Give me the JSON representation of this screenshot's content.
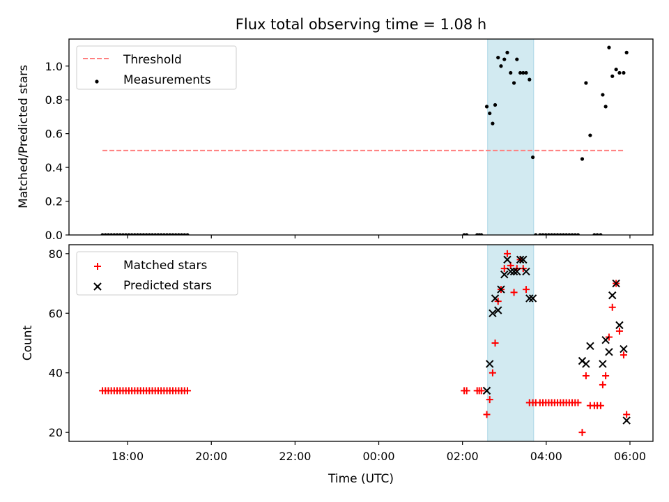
{
  "chart_data": [
    {
      "type": "scatter",
      "title": "Flux total observing time = 1.08 h",
      "ylabel": "Matched/Predicted stars",
      "xlabel": "",
      "ylim": [
        0,
        1.16
      ],
      "xlim": [
        16.6,
        30.55
      ],
      "x_ticks": [
        {
          "value": 18,
          "label": "18:00"
        },
        {
          "value": 20,
          "label": "20:00"
        },
        {
          "value": 22,
          "label": "22:00"
        },
        {
          "value": 24,
          "label": "00:00"
        },
        {
          "value": 26,
          "label": "02:00"
        },
        {
          "value": 28,
          "label": "04:00"
        },
        {
          "value": 30,
          "label": "06:00"
        }
      ],
      "y_ticks": [
        "0.0",
        "0.2",
        "0.4",
        "0.6",
        "0.8",
        "1.0"
      ],
      "y_tick_values": [
        0,
        0.2,
        0.4,
        0.6,
        0.8,
        1.0
      ],
      "legend": {
        "position": "top-left",
        "entries": [
          "Threshold",
          "Measurements"
        ]
      },
      "highlight_span": {
        "x": [
          26.6,
          27.7
        ],
        "color": "#add8e6"
      },
      "threshold": {
        "name": "Threshold",
        "y": 0.5,
        "x": [
          17.4,
          29.85
        ],
        "color": "#ff7f7f"
      },
      "series": [
        {
          "name": "Measurements",
          "color": "#000000",
          "x": [
            17.4,
            17.47,
            17.54,
            17.61,
            17.68,
            17.75,
            17.82,
            17.89,
            17.96,
            18.03,
            18.1,
            18.17,
            18.24,
            18.31,
            18.38,
            18.45,
            18.52,
            18.59,
            18.66,
            18.73,
            18.8,
            18.87,
            18.94,
            19.01,
            19.08,
            19.15,
            19.22,
            19.29,
            19.36,
            19.43,
            26.04,
            26.1,
            26.35,
            26.4,
            26.45,
            26.58,
            26.65,
            26.72,
            26.78,
            26.85,
            26.92,
            27.0,
            27.07,
            27.15,
            27.23,
            27.3,
            27.38,
            27.45,
            27.52,
            27.6,
            27.68,
            27.75,
            27.85,
            27.92,
            27.99,
            28.06,
            28.13,
            28.2,
            28.27,
            28.34,
            28.41,
            28.48,
            28.55,
            28.62,
            28.69,
            28.76,
            28.86,
            28.95,
            29.05,
            29.15,
            29.22,
            29.3,
            29.35,
            29.42,
            29.5,
            29.58,
            29.67,
            29.75,
            29.85,
            29.92
          ],
          "y": [
            0,
            0,
            0,
            0,
            0,
            0,
            0,
            0,
            0,
            0,
            0,
            0,
            0,
            0,
            0,
            0,
            0,
            0,
            0,
            0,
            0,
            0,
            0,
            0,
            0,
            0,
            0,
            0,
            0,
            0,
            0,
            0,
            0,
            0,
            0,
            0.76,
            0.72,
            0.66,
            0.77,
            1.05,
            1.0,
            1.04,
            1.08,
            0.96,
            0.9,
            1.04,
            0.96,
            0.96,
            0.96,
            0.92,
            0.46,
            0,
            0,
            0,
            0,
            0,
            0,
            0,
            0,
            0,
            0,
            0,
            0,
            0,
            0,
            0,
            0.45,
            0.9,
            0.59,
            0,
            0,
            0,
            0.83,
            0.76,
            1.11,
            0.94,
            0.98,
            0.96,
            0.96,
            1.08
          ]
        }
      ]
    },
    {
      "type": "scatter",
      "title": "",
      "ylabel": "Count",
      "xlabel": "Time (UTC)",
      "ylim": [
        17,
        83
      ],
      "xlim": [
        16.6,
        30.55
      ],
      "y_ticks": [
        "20",
        "40",
        "60",
        "80"
      ],
      "y_tick_values": [
        20,
        40,
        60,
        80
      ],
      "legend": {
        "position": "top-left",
        "entries": [
          "Matched stars",
          "Predicted stars"
        ]
      },
      "highlight_span": {
        "x": [
          26.6,
          27.7
        ],
        "color": "#add8e6"
      },
      "series": [
        {
          "name": "Matched stars",
          "color": "#ff0000",
          "marker": "+",
          "x": [
            17.4,
            17.47,
            17.54,
            17.61,
            17.68,
            17.75,
            17.82,
            17.89,
            17.96,
            18.03,
            18.1,
            18.17,
            18.24,
            18.31,
            18.38,
            18.45,
            18.52,
            18.59,
            18.66,
            18.73,
            18.8,
            18.87,
            18.94,
            19.01,
            19.08,
            19.15,
            19.22,
            19.29,
            19.36,
            19.43,
            26.04,
            26.1,
            26.35,
            26.4,
            26.45,
            26.58,
            26.65,
            26.72,
            26.78,
            26.85,
            26.92,
            27.0,
            27.07,
            27.15,
            27.23,
            27.3,
            27.38,
            27.45,
            27.52,
            27.6,
            27.68,
            27.75,
            27.85,
            27.92,
            27.99,
            28.06,
            28.13,
            28.2,
            28.27,
            28.34,
            28.41,
            28.48,
            28.55,
            28.62,
            28.69,
            28.76,
            28.86,
            28.95,
            29.05,
            29.15,
            29.22,
            29.3,
            29.35,
            29.42,
            29.5,
            29.58,
            29.67,
            29.75,
            29.85,
            29.92
          ],
          "y": [
            34,
            34,
            34,
            34,
            34,
            34,
            34,
            34,
            34,
            34,
            34,
            34,
            34,
            34,
            34,
            34,
            34,
            34,
            34,
            34,
            34,
            34,
            34,
            34,
            34,
            34,
            34,
            34,
            34,
            34,
            34,
            34,
            34,
            34,
            34,
            26,
            31,
            40,
            50,
            64,
            68,
            75,
            80,
            76,
            67,
            75,
            78,
            75,
            68,
            30,
            30,
            30,
            30,
            30,
            30,
            30,
            30,
            30,
            30,
            30,
            30,
            30,
            30,
            30,
            30,
            30,
            20,
            39,
            29,
            29,
            29,
            29,
            36,
            39,
            52,
            62,
            70,
            54,
            46,
            26
          ]
        },
        {
          "name": "Predicted stars",
          "color": "#000000",
          "marker": "x",
          "x": [
            26.58,
            26.65,
            26.72,
            26.78,
            26.85,
            26.92,
            27.0,
            27.07,
            27.15,
            27.23,
            27.3,
            27.38,
            27.45,
            27.52,
            27.6,
            27.68,
            28.86,
            28.95,
            29.05,
            29.35,
            29.42,
            29.5,
            29.58,
            29.67,
            29.75,
            29.85,
            29.92
          ],
          "y": [
            34,
            43,
            60,
            65,
            61,
            68,
            73,
            78,
            74,
            74,
            74,
            78,
            78,
            74,
            65,
            65,
            44,
            43,
            49,
            43,
            51,
            47,
            66,
            70,
            56,
            48,
            24
          ]
        }
      ]
    }
  ]
}
